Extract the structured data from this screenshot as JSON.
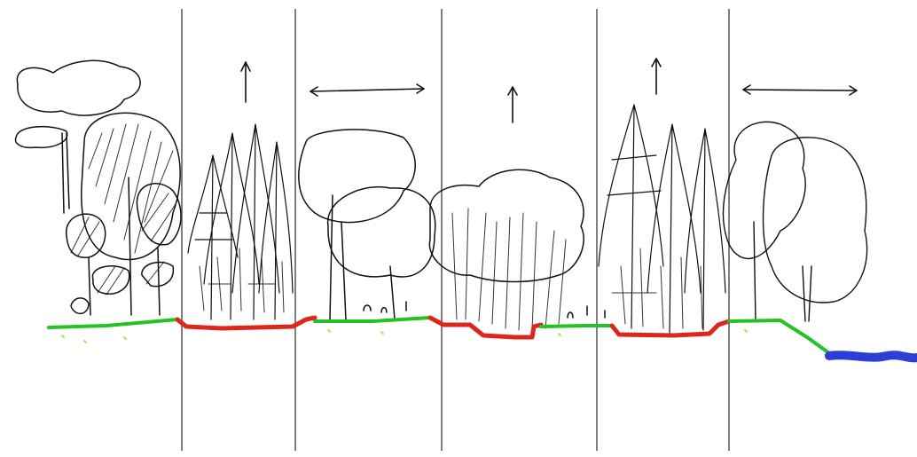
{
  "colors": {
    "ink": "#111111",
    "divider": "#7f7f7f",
    "ground_green": "#22c322",
    "ground_red": "#e0251b",
    "water_blue": "#2b3fd6",
    "grass_speck": "#b7e34a"
  },
  "panels": [
    {
      "id": "panel-1",
      "ground": "green",
      "vegetation": "broadleaf-clumps",
      "symbol": "none"
    },
    {
      "id": "panel-2",
      "ground": "red",
      "vegetation": "conifers",
      "symbol": "up-arrow"
    },
    {
      "id": "panel-3",
      "ground": "green",
      "vegetation": "tree-canopy",
      "symbol": "double-arrow"
    },
    {
      "id": "panel-4",
      "ground": "red",
      "vegetation": "shrub-canopy",
      "symbol": "up-arrow"
    },
    {
      "id": "panel-5",
      "ground": "red",
      "vegetation": "conifers",
      "symbol": "up-arrow"
    },
    {
      "id": "panel-6",
      "ground": "green",
      "vegetation": "broadleaf-trees",
      "symbol": "double-arrow",
      "water": true
    }
  ]
}
